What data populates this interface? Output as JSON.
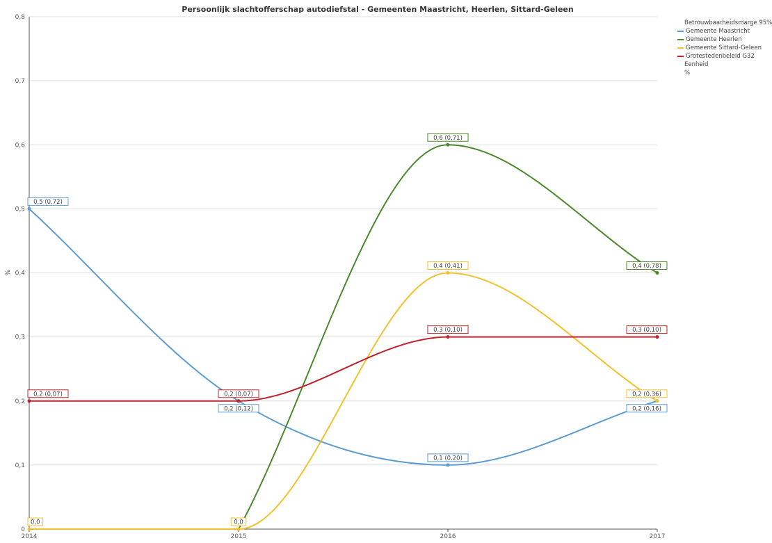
{
  "chart_data": {
    "type": "line",
    "title": "Persoonlijk slachtofferschap autodiefstal - Gemeenten Maastricht, Heerlen, Sittard-Geleen",
    "ylabel": "%",
    "xlabel": "",
    "x": [
      "2014",
      "2015",
      "2016",
      "2017"
    ],
    "ylim": [
      0,
      0.8
    ],
    "yticks": [
      "0",
      "0,1",
      "0,2",
      "0,3",
      "0,4",
      "0,5",
      "0,6",
      "0,7",
      "0,8"
    ],
    "grid": true,
    "legend_position": "top-right",
    "series": [
      {
        "name": "Gemeente Maastricht",
        "color": "#5b9bd5",
        "values": [
          0.5,
          0.2,
          0.1,
          0.2
        ],
        "labels": [
          "0,5 (0,72)",
          "0,2 (0,12)",
          "0,1 (0,20)",
          "0,2 (0,16)"
        ],
        "label_pos": [
          "above",
          "below",
          "above",
          "below"
        ]
      },
      {
        "name": "Gemeente Heerlen",
        "color": "#4a8a2a",
        "values": [
          null,
          0,
          0.6,
          0.4
        ],
        "labels": [
          null,
          null,
          "0,6 (0,71)",
          "0,4 (0,78)"
        ],
        "label_pos": [
          null,
          null,
          "above",
          "above"
        ]
      },
      {
        "name": "Gemeente Sittard-Geleen",
        "color": "#f2c12e",
        "values": [
          0,
          0,
          0.4,
          0.2
        ],
        "labels": [
          "0,0",
          "0,0",
          "0,4 (0,41)",
          "0,2 (0,36)"
        ],
        "label_pos": [
          "above",
          "above",
          "above",
          "above"
        ]
      },
      {
        "name": "Grotestedenbeleid G32",
        "color": "#c0222c",
        "values": [
          0.2,
          0.2,
          0.3,
          0.3
        ],
        "labels": [
          "0,2 (0,07)",
          "0,2 (0,07)",
          "0,3 (0,10)",
          "0,3 (0,10)"
        ],
        "label_pos": [
          "above",
          "above",
          "above",
          "above"
        ]
      }
    ]
  },
  "legend": {
    "header": "Betrouwbaarheidsmarge 95%",
    "unit_heading": "Eenheid",
    "unit_value": "%"
  }
}
